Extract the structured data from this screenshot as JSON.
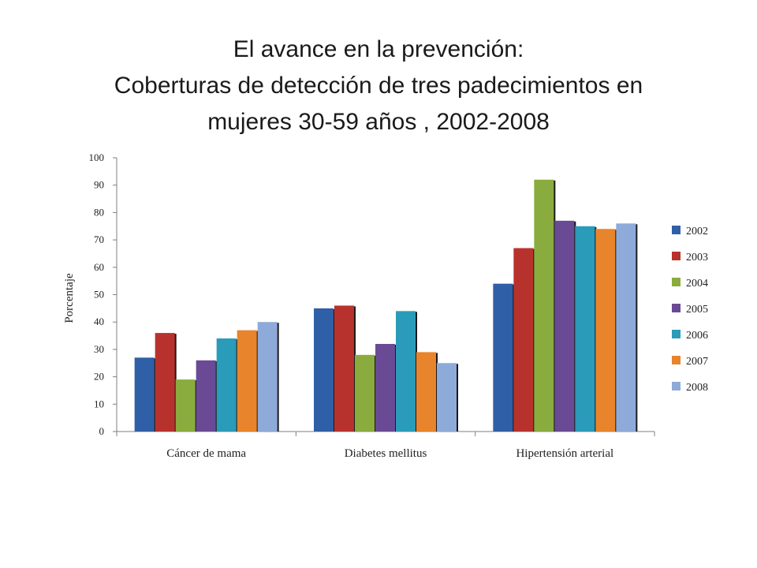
{
  "slide": {
    "title_line1": "El avance en la prevención:",
    "title_line2": "Coberturas de detección de tres padecimientos  en",
    "title_line3": "mujeres 30-59 años , 2002-2008"
  },
  "chart_data": {
    "type": "bar",
    "title": "",
    "xlabel": "",
    "ylabel": "Porcentaje",
    "ylim": [
      0,
      100
    ],
    "yticks": [
      0,
      10,
      20,
      30,
      40,
      50,
      60,
      70,
      80,
      90,
      100
    ],
    "grid": false,
    "legend_position": "right",
    "categories": [
      "Cáncer de mama",
      "Diabetes mellitus",
      "Hipertensión arterial"
    ],
    "series": [
      {
        "name": "2002",
        "color": "#2f5fa6",
        "values": [
          27,
          45,
          54
        ]
      },
      {
        "name": "2003",
        "color": "#b8322d",
        "values": [
          36,
          46,
          67
        ]
      },
      {
        "name": "2004",
        "color": "#8aac3e",
        "values": [
          19,
          28,
          92
        ]
      },
      {
        "name": "2005",
        "color": "#6a4a94",
        "values": [
          26,
          32,
          77
        ]
      },
      {
        "name": "2006",
        "color": "#2a9bb8",
        "values": [
          34,
          44,
          75
        ]
      },
      {
        "name": "2007",
        "color": "#e8842b",
        "values": [
          37,
          29,
          74
        ]
      },
      {
        "name": "2008",
        "color": "#8eaad8",
        "values": [
          40,
          25,
          76
        ]
      }
    ]
  }
}
